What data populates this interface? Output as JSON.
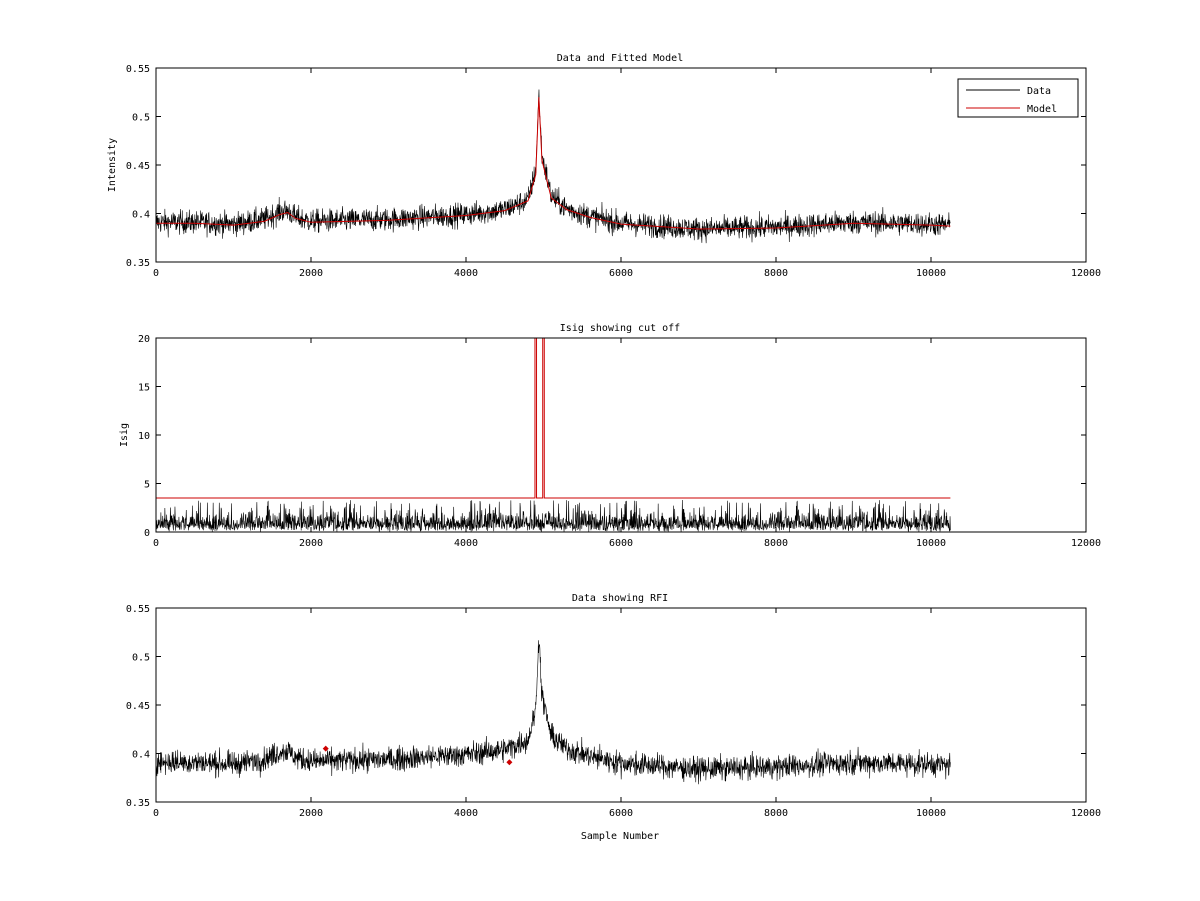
{
  "chart_data": [
    {
      "type": "line",
      "title": "Data and Fitted Model",
      "xlabel": "",
      "ylabel": "Intensity",
      "xlim": [
        0,
        12000
      ],
      "ylim": [
        0.35,
        0.55
      ],
      "xticks": [
        "0",
        "2000",
        "4000",
        "6000",
        "8000",
        "10000",
        "12000"
      ],
      "yticks": [
        "0.35",
        "0.4",
        "0.45",
        "0.5",
        "0.55"
      ],
      "legend": {
        "placement": "top-right",
        "entries": [
          "Data",
          "Model"
        ]
      },
      "series": [
        {
          "name": "Data",
          "color": "#000000",
          "noise": 0.006,
          "x": [
            0,
            500,
            1000,
            1400,
            1600,
            1700,
            1800,
            2000,
            3000,
            4000,
            4500,
            4800,
            4900,
            4940,
            4980,
            5100,
            5300,
            5600,
            6000,
            7000,
            8000,
            9000,
            10000,
            10250
          ],
          "y": [
            0.391,
            0.391,
            0.389,
            0.394,
            0.402,
            0.403,
            0.396,
            0.392,
            0.394,
            0.399,
            0.404,
            0.414,
            0.445,
            0.523,
            0.46,
            0.418,
            0.405,
            0.397,
            0.39,
            0.384,
            0.386,
            0.391,
            0.389,
            0.388
          ]
        },
        {
          "name": "Model",
          "color": "#cc0000",
          "noise": 0,
          "x": [
            0,
            500,
            1000,
            1400,
            1600,
            1700,
            1800,
            2000,
            3000,
            4000,
            4500,
            4800,
            4900,
            4940,
            4980,
            5100,
            5300,
            5600,
            6000,
            7000,
            8000,
            9000,
            10000,
            10250
          ],
          "y": [
            0.39,
            0.39,
            0.388,
            0.392,
            0.399,
            0.401,
            0.395,
            0.391,
            0.393,
            0.398,
            0.403,
            0.413,
            0.44,
            0.52,
            0.455,
            0.416,
            0.404,
            0.396,
            0.389,
            0.384,
            0.385,
            0.39,
            0.388,
            0.387
          ]
        }
      ]
    },
    {
      "type": "line",
      "title": "Isig showing cut off",
      "xlabel": "",
      "ylabel": "Isig",
      "xlim": [
        0,
        12000
      ],
      "ylim": [
        0,
        20
      ],
      "xticks": [
        "0",
        "2000",
        "4000",
        "6000",
        "8000",
        "10000",
        "12000"
      ],
      "yticks": [
        "0",
        "5",
        "10",
        "15",
        "20"
      ],
      "series": [
        {
          "color": "#000000",
          "kind": "noise",
          "x_range": [
            0,
            10250
          ],
          "y_range": [
            0,
            3.3
          ]
        },
        {
          "color": "#cc0000",
          "x": [
            0,
            4890,
            4890,
            4910,
            4910,
            4990,
            4990,
            5010,
            5010,
            10250
          ],
          "y": [
            3.5,
            3.5,
            20,
            20,
            3.5,
            3.5,
            20,
            20,
            3.5,
            3.5
          ]
        }
      ]
    },
    {
      "type": "line",
      "title": "Data showing RFI",
      "xlabel": "Sample Number",
      "ylabel": "",
      "xlim": [
        0,
        12000
      ],
      "ylim": [
        0.35,
        0.55
      ],
      "xticks": [
        "0",
        "2000",
        "4000",
        "6000",
        "8000",
        "10000",
        "12000"
      ],
      "yticks": [
        "0.35",
        "0.4",
        "0.45",
        "0.5",
        "0.55"
      ],
      "series": [
        {
          "color": "#000000",
          "noise": 0.006,
          "x": [
            0,
            500,
            1000,
            1400,
            1600,
            1700,
            1800,
            2000,
            3000,
            4000,
            4500,
            4800,
            4900,
            4940,
            4980,
            5100,
            5300,
            5600,
            6000,
            7000,
            8000,
            9000,
            10000,
            10250
          ],
          "y": [
            0.391,
            0.391,
            0.389,
            0.394,
            0.402,
            0.403,
            0.396,
            0.392,
            0.394,
            0.399,
            0.404,
            0.414,
            0.445,
            0.523,
            0.46,
            0.418,
            0.405,
            0.397,
            0.39,
            0.384,
            0.386,
            0.391,
            0.389,
            0.388
          ]
        }
      ],
      "rfi_points": {
        "color": "#cc0000",
        "x": [
          2190,
          4560
        ],
        "y": [
          0.405,
          0.391
        ]
      }
    }
  ]
}
